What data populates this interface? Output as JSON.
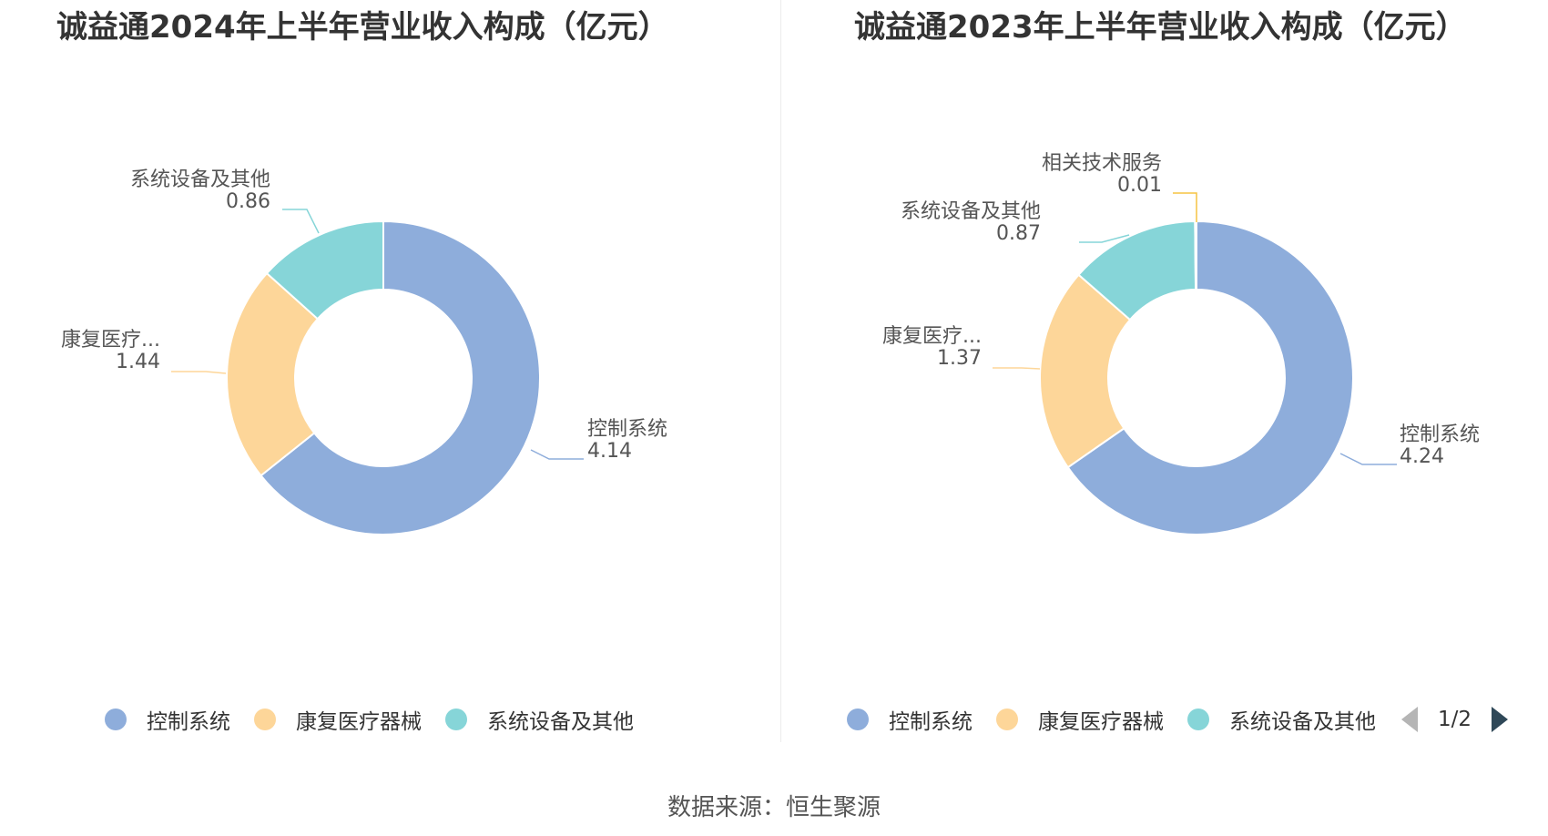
{
  "source": "数据来源：恒生聚源",
  "chart_data": [
    {
      "type": "pie",
      "title": "诚益通2024年上半年营业收入构成（亿元）",
      "series": [
        {
          "name": "控制系统",
          "label": "控制系统",
          "value": 4.14,
          "color": "#8eaddb"
        },
        {
          "name": "康复医疗器械",
          "label": "康复医疗...",
          "value": 1.44,
          "color": "#fdd699"
        },
        {
          "name": "系统设备及其他",
          "label": "系统设备及其他",
          "value": 0.86,
          "color": "#86d5d8"
        }
      ],
      "legend": {
        "position": "bottom",
        "items": [
          "控制系统",
          "康复医疗器械",
          "系统设备及其他"
        ]
      }
    },
    {
      "type": "pie",
      "title": "诚益通2023年上半年营业收入构成（亿元）",
      "series": [
        {
          "name": "控制系统",
          "label": "控制系统",
          "value": 4.24,
          "color": "#8eaddb"
        },
        {
          "name": "康复医疗器械",
          "label": "康复医疗...",
          "value": 1.37,
          "color": "#fdd699"
        },
        {
          "name": "系统设备及其他",
          "label": "系统设备及其他",
          "value": 0.87,
          "color": "#86d5d8"
        },
        {
          "name": "相关技术服务",
          "label": "相关技术服务",
          "value": 0.01,
          "color": "#f6c342"
        }
      ],
      "legend": {
        "position": "bottom",
        "items": [
          "控制系统",
          "康复医疗器械",
          "系统设备及其他"
        ],
        "pager": "1/2"
      }
    }
  ]
}
